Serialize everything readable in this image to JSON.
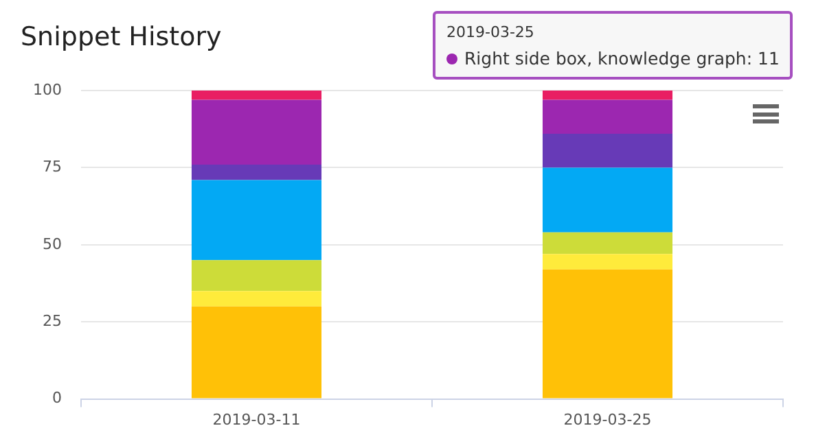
{
  "chart_data": {
    "type": "bar",
    "title": "Snippet History",
    "stacked": true,
    "categories": [
      "2019-03-11",
      "2019-03-25"
    ],
    "series": [
      {
        "color": "#ffc107",
        "values": [
          30,
          42
        ]
      },
      {
        "color": "#ffeb3b",
        "values": [
          5,
          5
        ]
      },
      {
        "color": "#cddc39",
        "values": [
          10,
          7
        ]
      },
      {
        "color": "#03a9f4",
        "values": [
          26,
          21
        ]
      },
      {
        "color": "#673ab7",
        "values": [
          5,
          11
        ]
      },
      {
        "color": "#9c27b0",
        "values": [
          21,
          11
        ]
      },
      {
        "color": "#e91e63",
        "values": [
          3,
          3
        ]
      }
    ],
    "ylim": [
      0,
      100
    ],
    "yticks": [
      0,
      25,
      50,
      75,
      100
    ],
    "grid": "y",
    "legend": false,
    "annotations": [
      "2019-03-25",
      "Right side box, knowledge graph: 11"
    ]
  }
}
